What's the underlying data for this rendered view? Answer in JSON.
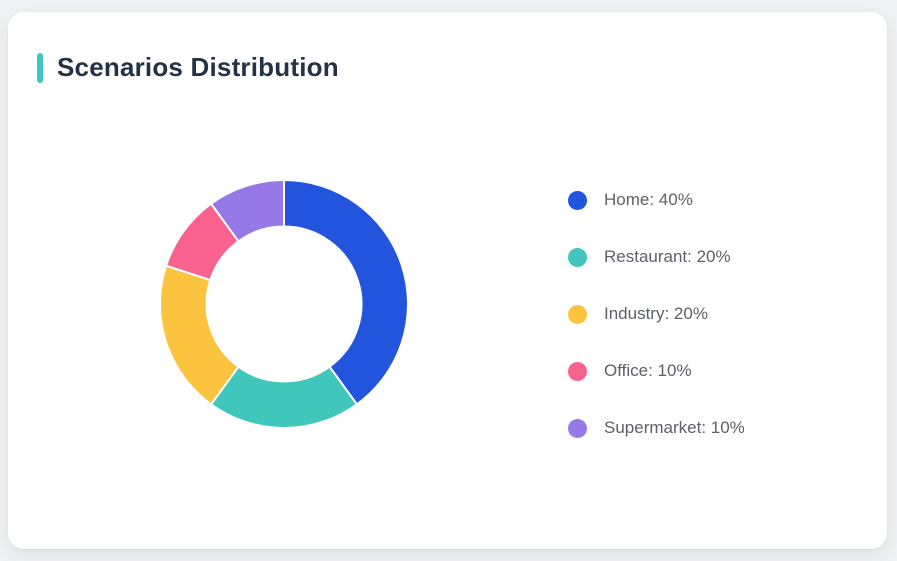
{
  "page": {
    "background_color": "#F0F1F3"
  },
  "card": {
    "title": "Scenarios Distribution",
    "accent_color": "#3EC7C0",
    "background_color": "#FFFFFF"
  },
  "chart_data": {
    "type": "pie",
    "variant": "donut",
    "title": "Scenarios Distribution",
    "categories": [
      "Home",
      "Restaurant",
      "Industry",
      "Office",
      "Supermarket"
    ],
    "values": [
      40,
      20,
      20,
      10,
      10
    ],
    "unit": "%",
    "colors": [
      "#2254DE",
      "#41C6BC",
      "#FCC33F",
      "#F9628F",
      "#9678E6"
    ],
    "start_angle": "top",
    "direction": "clockwise",
    "inner_radius_ratio": 0.625,
    "separator_color": "#FFFFFF",
    "legend_position": "right",
    "legend": [
      {
        "label": "Home: 40%",
        "color": "#2254DE"
      },
      {
        "label": "Restaurant: 20%",
        "color": "#41C6BC"
      },
      {
        "label": "Industry: 20%",
        "color": "#FCC33F"
      },
      {
        "label": "Office: 10%",
        "color": "#F9628F"
      },
      {
        "label": "Supermarket: 10%",
        "color": "#9678E6"
      }
    ]
  }
}
